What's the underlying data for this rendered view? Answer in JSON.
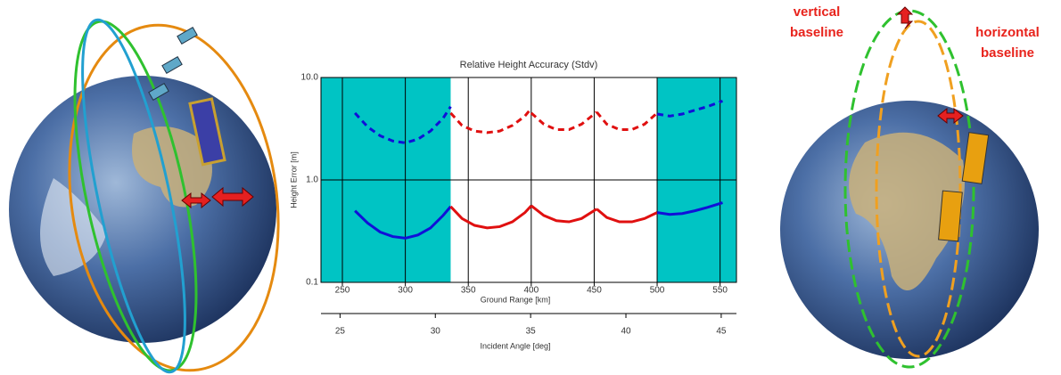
{
  "chart_data": {
    "type": "line",
    "title": "Relative Height Accuracy (Stdv)",
    "ylabel": "Height Error [m]",
    "xlabel": "Ground Range [km]",
    "x2label": "Incident Angle [deg]",
    "xlim": [
      233,
      563
    ],
    "xticks": [
      250,
      300,
      350,
      400,
      450,
      500,
      550
    ],
    "x2lim": [
      24,
      45.8
    ],
    "x2ticks": [
      25,
      30,
      35,
      40,
      45
    ],
    "ylim": [
      0.1,
      10
    ],
    "yticks": [
      0.1,
      {
        "value": 1,
        "label": "1.0"
      },
      {
        "value": 10,
        "label": "10.0"
      }
    ],
    "log_y": true,
    "grid": true,
    "shaded": [
      [
        233,
        336
      ],
      [
        500,
        563
      ]
    ],
    "shade_color": "#00c4c4",
    "series": [
      {
        "color": "#1010d8",
        "dashed": false,
        "x": [
          260,
          270,
          280,
          290,
          300,
          310,
          320,
          330,
          336
        ],
        "values": [
          0.5,
          0.38,
          0.31,
          0.28,
          0.27,
          0.29,
          0.34,
          0.45,
          0.55
        ]
      },
      {
        "color": "#e01010",
        "dashed": false,
        "x": [
          336,
          345,
          355,
          365,
          375,
          385,
          395,
          400
        ],
        "values": [
          0.55,
          0.42,
          0.36,
          0.34,
          0.35,
          0.39,
          0.48,
          0.56
        ]
      },
      {
        "color": "#e01010",
        "dashed": false,
        "x": [
          400,
          410,
          420,
          430,
          440,
          452
        ],
        "values": [
          0.56,
          0.45,
          0.4,
          0.39,
          0.42,
          0.52
        ]
      },
      {
        "color": "#e01010",
        "dashed": false,
        "x": [
          452,
          460,
          470,
          480,
          490,
          500
        ],
        "values": [
          0.52,
          0.43,
          0.39,
          0.39,
          0.42,
          0.48
        ]
      },
      {
        "color": "#1010d8",
        "dashed": false,
        "x": [
          500,
          510,
          520,
          530,
          540,
          552
        ],
        "values": [
          0.48,
          0.46,
          0.47,
          0.5,
          0.54,
          0.6
        ]
      },
      {
        "color": "#1010d8",
        "dashed": true,
        "x": [
          260,
          270,
          280,
          290,
          300,
          310,
          320,
          330,
          336
        ],
        "values": [
          4.5,
          3.3,
          2.7,
          2.4,
          2.3,
          2.5,
          3.0,
          4.0,
          5.2
        ]
      },
      {
        "color": "#e01010",
        "dashed": true,
        "x": [
          336,
          345,
          355,
          365,
          375,
          385,
          395,
          400
        ],
        "values": [
          4.5,
          3.4,
          3.0,
          2.9,
          3.0,
          3.4,
          4.2,
          5.0
        ]
      },
      {
        "color": "#e01010",
        "dashed": true,
        "x": [
          400,
          410,
          420,
          430,
          440,
          452
        ],
        "values": [
          4.5,
          3.5,
          3.1,
          3.1,
          3.5,
          4.6
        ]
      },
      {
        "color": "#e01010",
        "dashed": true,
        "x": [
          452,
          460,
          470,
          480,
          490,
          500
        ],
        "values": [
          4.6,
          3.5,
          3.1,
          3.1,
          3.5,
          4.5
        ]
      },
      {
        "color": "#1010d8",
        "dashed": true,
        "x": [
          500,
          510,
          520,
          530,
          540,
          552
        ],
        "values": [
          4.4,
          4.2,
          4.4,
          4.8,
          5.2,
          5.9
        ]
      }
    ]
  },
  "annotations": {
    "vertical_baseline": [
      "vertical",
      "baseline"
    ],
    "horizontal_baseline": [
      "horizontal",
      "baseline"
    ]
  }
}
